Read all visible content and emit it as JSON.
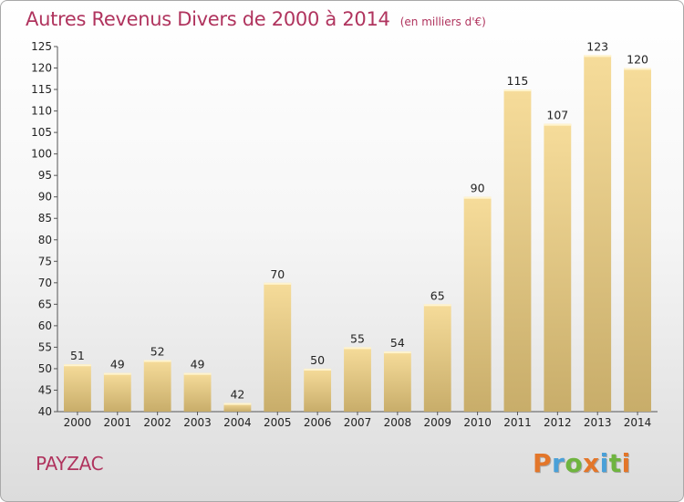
{
  "header": {
    "title": "Autres Revenus Divers de 2000 à 2014",
    "subtitle": "(en milliers d'€)"
  },
  "footer": {
    "town": "PAYZAC",
    "logo_text": "Proxiti",
    "logo_colors": [
      "#e3762a",
      "#4aa0d8",
      "#6fb43f",
      "#e3762a",
      "#4aa0d8",
      "#6fb43f",
      "#e3762a"
    ]
  },
  "chart_data": {
    "type": "bar",
    "title": "Autres Revenus Divers de 2000 à 2014",
    "subtitle": "(en milliers d'€)",
    "categories": [
      "2000",
      "2001",
      "2002",
      "2003",
      "2004",
      "2005",
      "2006",
      "2007",
      "2008",
      "2009",
      "2010",
      "2011",
      "2012",
      "2013",
      "2014"
    ],
    "values": [
      51,
      49,
      52,
      49,
      42,
      70,
      50,
      55,
      54,
      65,
      90,
      115,
      107,
      123,
      120
    ],
    "ylim": [
      40,
      125
    ],
    "yticks": [
      40,
      45,
      50,
      55,
      60,
      65,
      70,
      75,
      80,
      85,
      90,
      95,
      100,
      105,
      110,
      115,
      120,
      125
    ],
    "xlabel": "",
    "ylabel": "",
    "data_labels": true,
    "grid": false,
    "bar_color_top": "#f6dc9a",
    "bar_color_bottom": "#c8ad6a"
  }
}
